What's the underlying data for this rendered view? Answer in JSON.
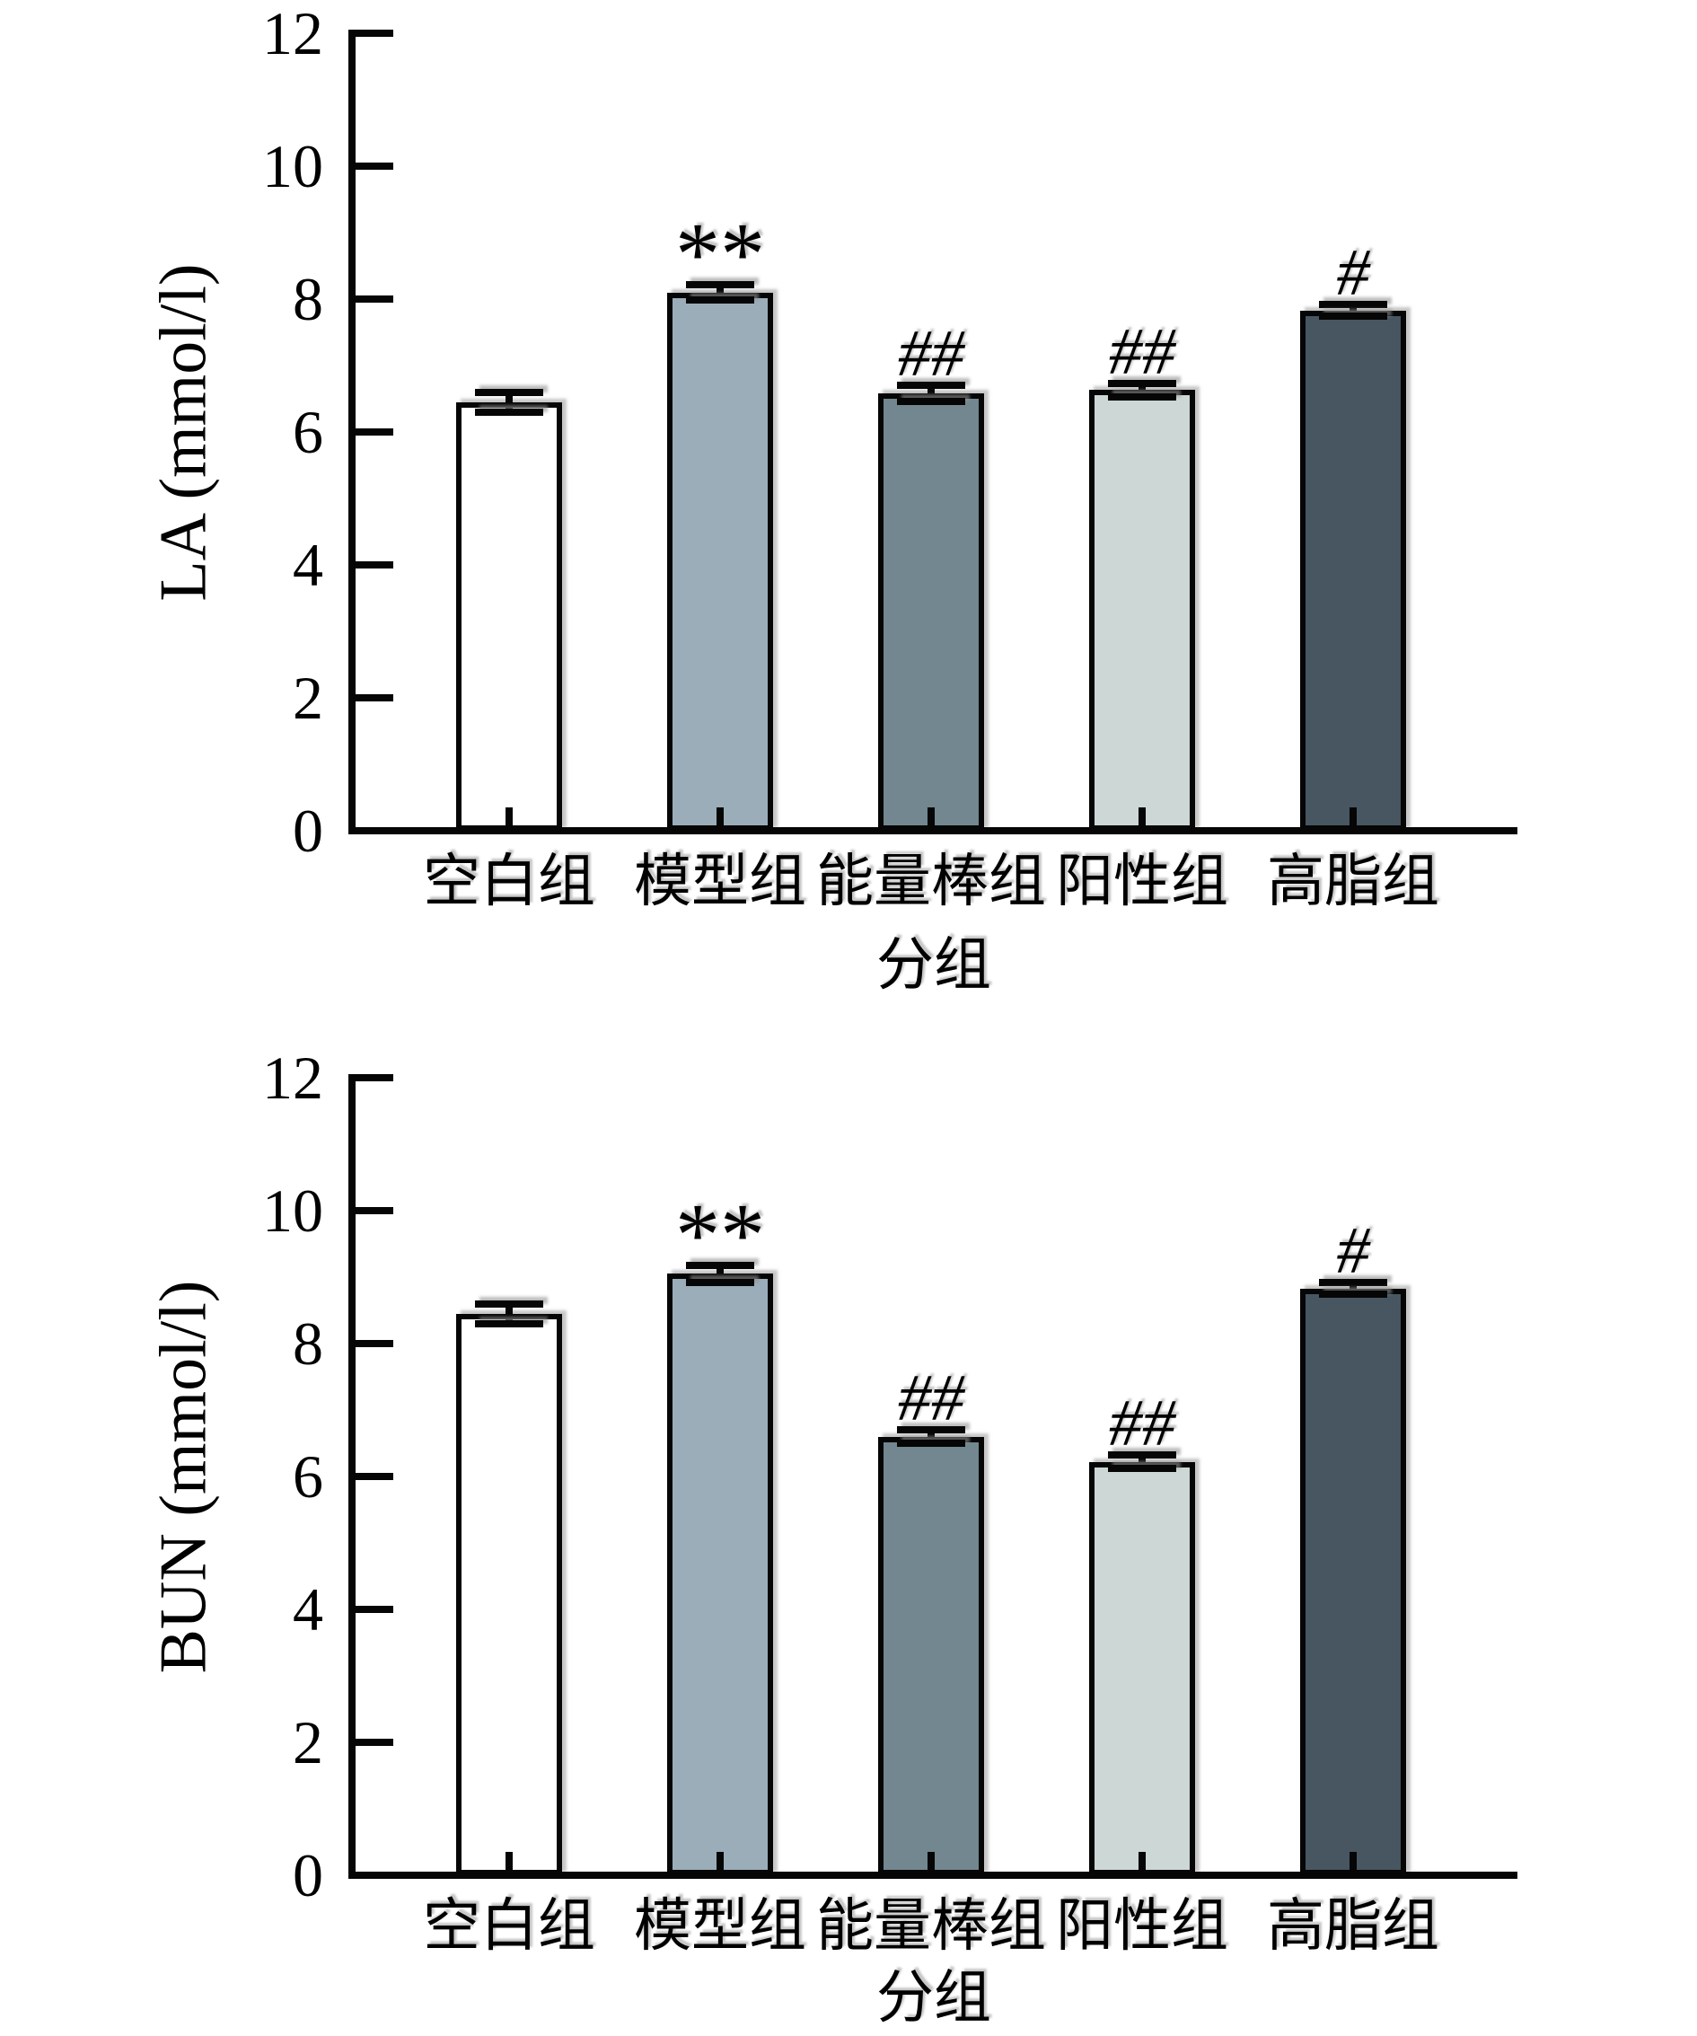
{
  "figure": {
    "background": "#ffffff",
    "layout": "two vertically stacked bar charts with error bars",
    "text_color": "#000000",
    "axis_color": "#060606"
  },
  "chart_data": [
    {
      "id": "la",
      "type": "bar",
      "title": "",
      "ylabel": "LA (mmol/l)",
      "xlabel": "分组",
      "categories": [
        "空白组",
        "模型组",
        "能量棒组",
        "阳性组",
        "高脂组"
      ],
      "values": [
        6.45,
        8.1,
        6.58,
        6.63,
        7.83
      ],
      "errors": [
        0.15,
        0.12,
        0.12,
        0.1,
        0.09
      ],
      "annotations": [
        "",
        "**",
        "##",
        "##",
        "#"
      ],
      "ylim": [
        0,
        12
      ],
      "ytick_step": 2,
      "yticks": [
        0,
        2,
        4,
        6,
        8,
        10,
        12
      ],
      "bar_colors": [
        "#ffffff",
        "#9aadb9",
        "#72878f",
        "#ccd7d6",
        "#475661"
      ],
      "bar_edge_color": "#060606",
      "grid": false,
      "legend": null
    },
    {
      "id": "bun",
      "type": "bar",
      "title": "",
      "ylabel": "BUN (mmol/l)",
      "xlabel": "分组",
      "categories": [
        "空白组",
        "模型组",
        "能量棒组",
        "阳性组",
        "高脂组"
      ],
      "values": [
        8.45,
        9.05,
        6.6,
        6.22,
        8.83
      ],
      "errors": [
        0.15,
        0.13,
        0.1,
        0.1,
        0.09
      ],
      "annotations": [
        "",
        "**",
        "##",
        "##",
        "#"
      ],
      "ylim": [
        0,
        12
      ],
      "ytick_step": 2,
      "yticks": [
        0,
        2,
        4,
        6,
        8,
        10,
        12
      ],
      "bar_colors": [
        "#ffffff",
        "#9aadb9",
        "#72878f",
        "#ccd7d6",
        "#475661"
      ],
      "bar_edge_color": "#060606",
      "grid": false,
      "legend": null
    }
  ]
}
